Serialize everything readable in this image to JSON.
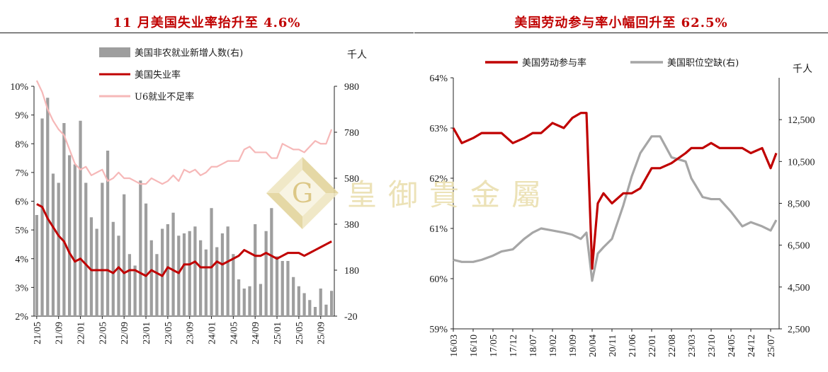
{
  "chart_data": [
    {
      "type": "bar",
      "title": "11 月美国失业率抬升至 4.6%",
      "unit_right": "千人",
      "x": [
        "21/05",
        "21/06",
        "21/07",
        "21/08",
        "21/09",
        "21/10",
        "21/11",
        "21/12",
        "22/01",
        "22/02",
        "22/03",
        "22/04",
        "22/05",
        "22/06",
        "22/07",
        "22/08",
        "22/09",
        "22/10",
        "22/11",
        "22/12",
        "23/01",
        "23/02",
        "23/03",
        "23/04",
        "23/05",
        "23/06",
        "23/07",
        "23/08",
        "23/09",
        "23/10",
        "23/11",
        "23/12",
        "24/01",
        "24/02",
        "24/03",
        "24/04",
        "24/05",
        "24/06",
        "24/07",
        "24/08",
        "24/09",
        "24/10",
        "24/11",
        "24/12",
        "25/01",
        "25/02",
        "25/03",
        "25/04",
        "25/05",
        "25/06",
        "25/07",
        "25/08",
        "25/09",
        "25/10",
        "25/11"
      ],
      "xticks": [
        "21/05",
        "21/09",
        "22/01",
        "22/05",
        "22/09",
        "23/01",
        "23/05",
        "23/09",
        "24/01",
        "24/05",
        "24/09",
        "25/01",
        "25/05",
        "25/09"
      ],
      "ylim_left": [
        2,
        10
      ],
      "yticks_left": [
        "2%",
        "3%",
        "4%",
        "5%",
        "6%",
        "7%",
        "8%",
        "9%",
        "10%"
      ],
      "ylim_right": [
        -20,
        980
      ],
      "yticks_right": [
        "-20",
        "180",
        "380",
        "580",
        "780",
        "980"
      ],
      "series": [
        {
          "name": "美国非农就业新增人数(右)",
          "kind": "bar",
          "axis": "right",
          "color": "#9e9e9e",
          "values": [
            420,
            840,
            930,
            600,
            560,
            820,
            680,
            640,
            830,
            560,
            410,
            360,
            560,
            700,
            390,
            330,
            510,
            250,
            200,
            570,
            470,
            310,
            250,
            360,
            380,
            430,
            330,
            340,
            350,
            370,
            310,
            270,
            450,
            280,
            340,
            370,
            250,
            140,
            100,
            110,
            380,
            120,
            350,
            450,
            240,
            220,
            220,
            150,
            110,
            80,
            50,
            20,
            100,
            30,
            90
          ]
        },
        {
          "name": "美国失业率",
          "kind": "line",
          "axis": "left",
          "color": "#c00000",
          "values": [
            5.9,
            5.8,
            5.4,
            5.1,
            4.8,
            4.6,
            4.2,
            3.9,
            4.0,
            3.8,
            3.6,
            3.6,
            3.6,
            3.6,
            3.5,
            3.7,
            3.5,
            3.6,
            3.6,
            3.5,
            3.4,
            3.6,
            3.5,
            3.4,
            3.7,
            3.6,
            3.5,
            3.8,
            3.8,
            3.9,
            3.7,
            3.7,
            3.7,
            3.9,
            3.8,
            3.9,
            4.0,
            4.1,
            4.3,
            4.2,
            4.1,
            4.1,
            4.2,
            4.1,
            4.0,
            4.1,
            4.2,
            4.2,
            4.2,
            4.1,
            4.2,
            4.3,
            4.4,
            4.5,
            4.6
          ]
        },
        {
          "name": "U6就业不足率",
          "kind": "line",
          "axis": "left",
          "color": "#f6b8b8",
          "values": [
            10.2,
            9.8,
            9.2,
            8.8,
            8.5,
            8.3,
            7.8,
            7.3,
            7.1,
            7.2,
            6.9,
            7.0,
            7.1,
            6.7,
            6.8,
            7.0,
            6.8,
            6.8,
            6.7,
            6.6,
            6.6,
            6.8,
            6.7,
            6.6,
            6.7,
            6.9,
            6.7,
            7.1,
            7.0,
            7.1,
            6.9,
            7.0,
            7.2,
            7.2,
            7.3,
            7.4,
            7.4,
            7.4,
            7.8,
            7.9,
            7.7,
            7.7,
            7.7,
            7.5,
            7.5,
            8.0,
            7.9,
            7.8,
            7.8,
            7.7,
            7.9,
            8.1,
            8.0,
            8.0,
            8.5
          ]
        }
      ]
    },
    {
      "type": "line",
      "title": "美国劳动参与率小幅回升至 62.5%",
      "unit_right": "千人",
      "xticks": [
        "16/03",
        "16/10",
        "17/05",
        "17/12",
        "18/07",
        "19/02",
        "19/09",
        "20/04",
        "20/11",
        "21/06",
        "22/01",
        "22/08",
        "23/03",
        "23/10",
        "24/05",
        "24/12",
        "25/07"
      ],
      "ylim_left": [
        59,
        64
      ],
      "yticks_left": [
        "59%",
        "60%",
        "61%",
        "62%",
        "63%",
        "64%"
      ],
      "ylim_right": [
        2500,
        14500
      ],
      "yticks_right": [
        "2,500",
        "4,500",
        "6,500",
        "8,500",
        "10,500",
        "12,500"
      ],
      "series": [
        {
          "name": "美国劳动参与率",
          "kind": "line",
          "axis": "left",
          "color": "#c00000",
          "points": [
            [
              "16/03",
              63.0
            ],
            [
              "16/06",
              62.7
            ],
            [
              "16/10",
              62.8
            ],
            [
              "17/01",
              62.9
            ],
            [
              "17/05",
              62.9
            ],
            [
              "17/08",
              62.9
            ],
            [
              "17/12",
              62.7
            ],
            [
              "18/04",
              62.8
            ],
            [
              "18/07",
              62.9
            ],
            [
              "18/10",
              62.9
            ],
            [
              "19/02",
              63.1
            ],
            [
              "19/06",
              63.0
            ],
            [
              "19/09",
              63.2
            ],
            [
              "19/12",
              63.3
            ],
            [
              "20/02",
              63.3
            ],
            [
              "20/04",
              60.2
            ],
            [
              "20/06",
              61.5
            ],
            [
              "20/08",
              61.7
            ],
            [
              "20/11",
              61.5
            ],
            [
              "21/03",
              61.7
            ],
            [
              "21/06",
              61.7
            ],
            [
              "21/09",
              61.8
            ],
            [
              "22/01",
              62.2
            ],
            [
              "22/04",
              62.2
            ],
            [
              "22/08",
              62.3
            ],
            [
              "23/01",
              62.5
            ],
            [
              "23/03",
              62.6
            ],
            [
              "23/07",
              62.6
            ],
            [
              "23/10",
              62.7
            ],
            [
              "24/01",
              62.6
            ],
            [
              "24/05",
              62.6
            ],
            [
              "24/09",
              62.6
            ],
            [
              "24/12",
              62.5
            ],
            [
              "25/04",
              62.6
            ],
            [
              "25/07",
              62.2
            ],
            [
              "25/09",
              62.5
            ]
          ]
        },
        {
          "name": "美国职位空缺(右)",
          "kind": "line",
          "axis": "right",
          "color": "#a6a6a6",
          "points": [
            [
              "16/03",
              5800
            ],
            [
              "16/06",
              5700
            ],
            [
              "16/10",
              5700
            ],
            [
              "17/01",
              5800
            ],
            [
              "17/05",
              6000
            ],
            [
              "17/08",
              6200
            ],
            [
              "17/12",
              6300
            ],
            [
              "18/04",
              6800
            ],
            [
              "18/07",
              7100
            ],
            [
              "18/10",
              7300
            ],
            [
              "19/02",
              7200
            ],
            [
              "19/06",
              7100
            ],
            [
              "19/09",
              7000
            ],
            [
              "19/12",
              6800
            ],
            [
              "20/02",
              7100
            ],
            [
              "20/04",
              4800
            ],
            [
              "20/06",
              6100
            ],
            [
              "20/08",
              6400
            ],
            [
              "20/11",
              6800
            ],
            [
              "21/03",
              8400
            ],
            [
              "21/06",
              9800
            ],
            [
              "21/09",
              10900
            ],
            [
              "22/01",
              11700
            ],
            [
              "22/04",
              11700
            ],
            [
              "22/08",
              10700
            ],
            [
              "23/01",
              10500
            ],
            [
              "23/03",
              9700
            ],
            [
              "23/07",
              8800
            ],
            [
              "23/10",
              8700
            ],
            [
              "24/01",
              8700
            ],
            [
              "24/05",
              8100
            ],
            [
              "24/09",
              7400
            ],
            [
              "24/12",
              7600
            ],
            [
              "25/04",
              7400
            ],
            [
              "25/07",
              7200
            ],
            [
              "25/09",
              7700
            ]
          ]
        }
      ]
    }
  ],
  "watermark": {
    "text": "皇御貴金屬",
    "logo_letter": "G"
  }
}
